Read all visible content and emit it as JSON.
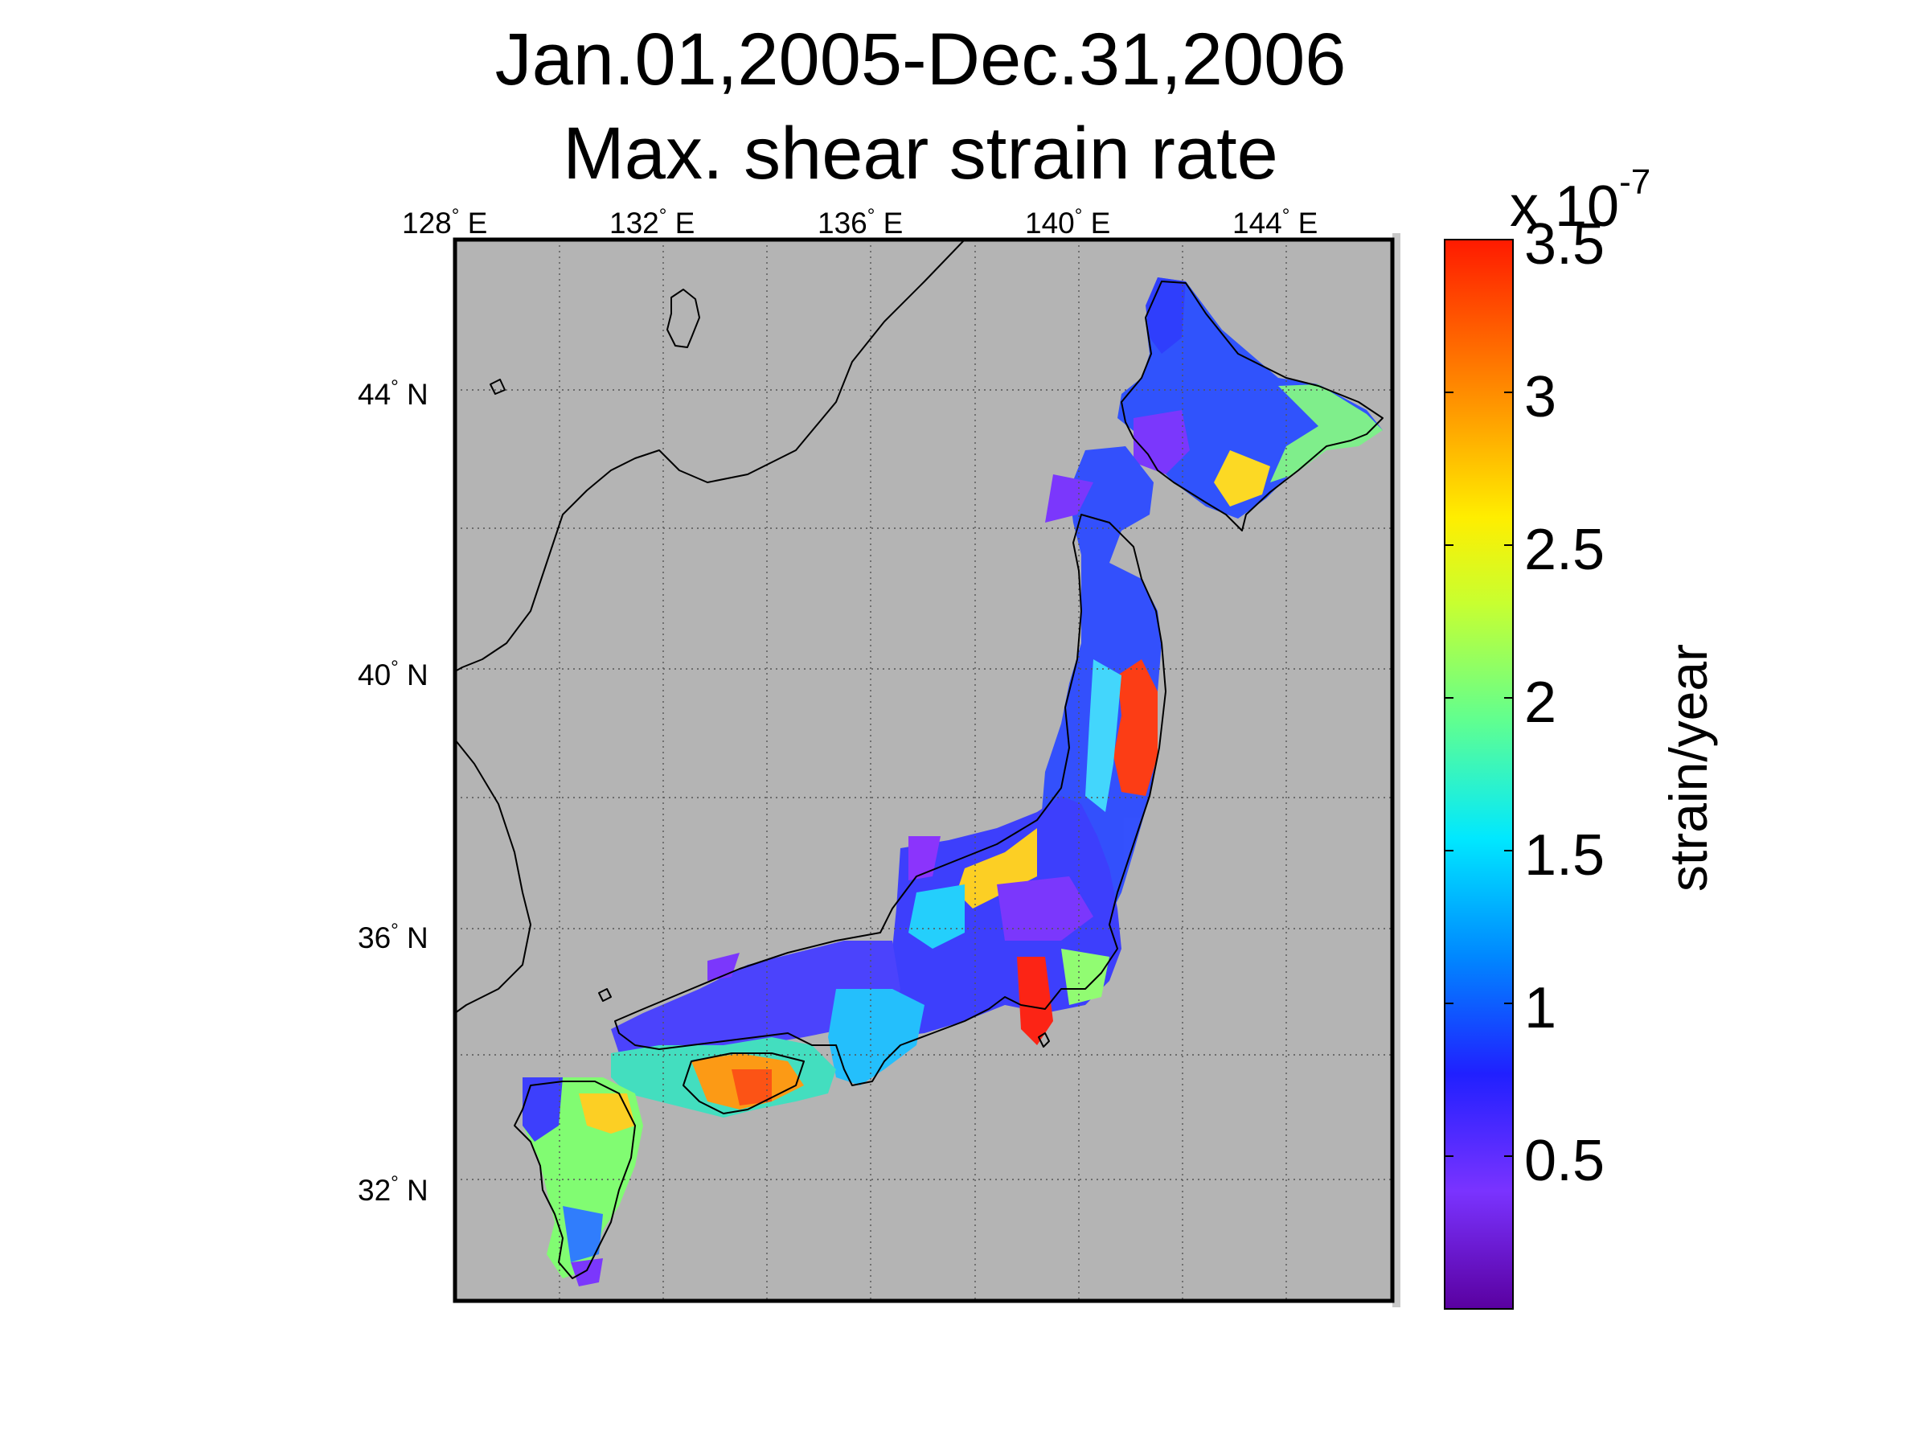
{
  "title_line1": "Jan.01,2005-Dec.31,2006",
  "title_line2": "Max. shear strain rate",
  "lon_labels": [
    "128",
    "132",
    "136",
    "140",
    "144"
  ],
  "lon_suffix": "E",
  "lat_labels": [
    "44",
    "40",
    "36",
    "32"
  ],
  "lat_suffix": "N",
  "colorbar": {
    "exponent_prefix": "x 10",
    "exponent": "-7",
    "label": "strain/year",
    "ticks": [
      "3.5",
      "3",
      "2.5",
      "2",
      "1.5",
      "1",
      "0.5"
    ],
    "range": [
      0,
      3.5
    ],
    "colormap": "jet"
  },
  "colors": {
    "sea": "#b4b4b4",
    "coast": "#000000",
    "grid": "#555555",
    "jet_low": "#5a00a0",
    "jet_high": "#ff1a00"
  }
}
